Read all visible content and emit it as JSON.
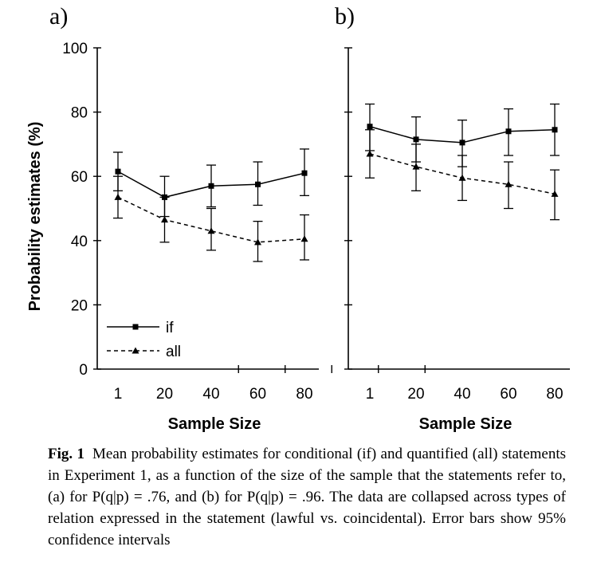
{
  "chart_data": [
    {
      "type": "line",
      "panel_label": "a)",
      "categories": [
        "1",
        "20",
        "40",
        "60",
        "80"
      ],
      "ylabel": "Probability estimates (%)",
      "xlabel": "Sample Size",
      "ylim": [
        0,
        100
      ],
      "yticks": [
        0,
        20,
        40,
        60,
        80,
        100
      ],
      "grid": false,
      "legend_placement": "bottom-left",
      "series": [
        {
          "name": "if",
          "style": "solid",
          "marker": "square",
          "values": [
            61.5,
            53.5,
            57,
            57.5,
            61
          ],
          "err_low": [
            55.5,
            47.5,
            50.5,
            51,
            54
          ],
          "err_high": [
            67.5,
            60,
            63.5,
            64.5,
            68.5
          ]
        },
        {
          "name": "all",
          "style": "dashed",
          "marker": "triangle",
          "values": [
            53.5,
            46.5,
            43,
            39.5,
            40.5
          ],
          "err_low": [
            47,
            39.5,
            37,
            33.5,
            34
          ],
          "err_high": [
            60,
            53.5,
            50,
            46,
            48
          ]
        }
      ]
    },
    {
      "type": "line",
      "panel_label": "b)",
      "categories": [
        "1",
        "20",
        "40",
        "60",
        "80"
      ],
      "xlabel": "Sample Size",
      "ylim": [
        0,
        100
      ],
      "yticks": [
        0,
        20,
        40,
        60,
        80,
        100
      ],
      "grid": false,
      "series": [
        {
          "name": "if",
          "style": "solid",
          "marker": "square",
          "values": [
            75.5,
            71.5,
            70.5,
            74,
            74.5
          ],
          "err_low": [
            68,
            64.5,
            63,
            66.5,
            66.5
          ],
          "err_high": [
            82.5,
            78.5,
            77.5,
            81,
            82.5
          ]
        },
        {
          "name": "all",
          "style": "dashed",
          "marker": "triangle",
          "values": [
            67,
            63,
            59.5,
            57.5,
            54.5
          ],
          "err_low": [
            59.5,
            55.5,
            52.5,
            50,
            46.5
          ],
          "err_high": [
            74.5,
            70,
            66.5,
            64.5,
            62
          ]
        }
      ]
    }
  ],
  "caption": {
    "label": "Fig. 1",
    "text": "Mean probability estimates for conditional (if) and quantified (all) statements in Experiment 1, as a function of the size of the sample that the statements refer to, (a) for P(q|p) = .76, and (b) for P(q|p) = .96. The data are collapsed across types of relation expressed in the statement (lawful vs. coincidental). Error bars show 95% confidence intervals"
  },
  "colors": {
    "ink": "#000000",
    "background": "#ffffff"
  }
}
